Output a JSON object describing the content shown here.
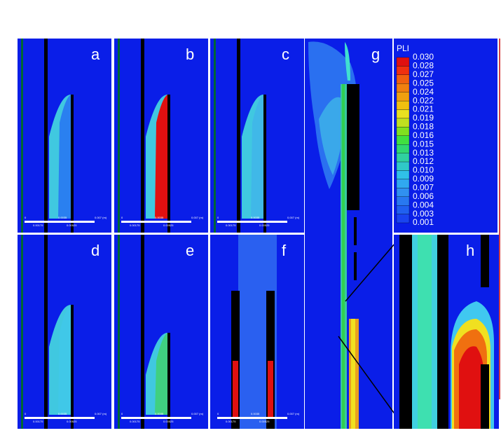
{
  "panels": [
    {
      "label": "a"
    },
    {
      "label": "b"
    },
    {
      "label": "c"
    },
    {
      "label": "d"
    },
    {
      "label": "e"
    },
    {
      "label": "f"
    },
    {
      "label": "g"
    },
    {
      "label": "h"
    }
  ],
  "scale_bar": {
    "labels": [
      "0",
      "0.0035",
      "0.007 (m)",
      "0.00175",
      "0.00525"
    ]
  },
  "legend": {
    "title": "PLI",
    "labels": [
      "0.030",
      "0.028",
      "0.027",
      "0.025",
      "0.024",
      "0.022",
      "0.021",
      "0.019",
      "0.018",
      "0.016",
      "0.015",
      "0.013",
      "0.012",
      "0.010",
      "0.009",
      "0.007",
      "0.006",
      "0.004",
      "0.003",
      "0.001"
    ]
  }
}
